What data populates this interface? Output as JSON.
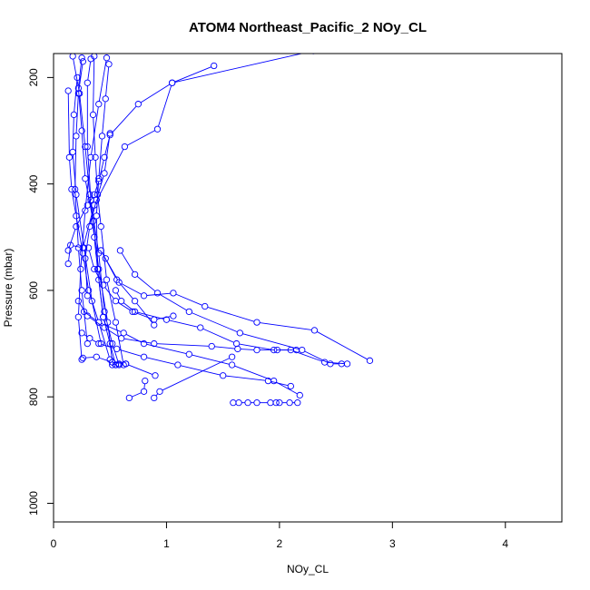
{
  "chart_data": {
    "type": "line",
    "title": "ATOM4 Northeast_Pacific_2 NOy_CL",
    "xlabel": "NOy_CL",
    "ylabel": "Pressure (mbar)",
    "xlim": [
      0,
      4.5
    ],
    "ylim": [
      1035,
      155
    ],
    "x_ticks": [
      "0",
      "1",
      "2",
      "3",
      "4"
    ],
    "x_tick_values": [
      0,
      1,
      2,
      3,
      4
    ],
    "y_ticks": [
      "200",
      "400",
      "600",
      "800",
      "1000"
    ],
    "y_tick_values": [
      200,
      400,
      600,
      800,
      1000
    ],
    "grid": false,
    "color": "#0000ff",
    "marker": "open-circle",
    "series": [
      {
        "x": [
          0.17,
          0.23,
          0.28,
          0.32,
          0.36,
          0.4,
          0.44,
          0.5,
          0.55
        ],
        "y": [
          160,
          230,
          330,
          420,
          500,
          580,
          650,
          700,
          740
        ]
      },
      {
        "x": [
          0.26,
          0.22,
          0.2,
          0.19,
          0.22,
          0.25,
          0.3
        ],
        "y": [
          170,
          230,
          310,
          410,
          520,
          600,
          700
        ]
      },
      {
        "x": [
          0.33,
          0.3,
          0.3,
          0.33,
          0.4,
          0.45,
          0.52,
          0.58
        ],
        "y": [
          165,
          210,
          330,
          430,
          530,
          640,
          700,
          740
        ]
      },
      {
        "x": [
          0.36,
          0.35,
          0.37,
          0.39,
          0.42,
          0.47,
          0.55,
          0.62
        ],
        "y": [
          160,
          270,
          350,
          420,
          480,
          580,
          660,
          740
        ]
      },
      {
        "x": [
          0.25,
          0.22,
          0.25,
          0.28,
          0.35,
          0.4,
          0.48,
          0.52
        ],
        "y": [
          163,
          220,
          300,
          390,
          470,
          560,
          660,
          735
        ]
      },
      {
        "x": [
          0.13,
          0.14,
          0.16,
          0.2,
          0.26,
          0.31,
          0.4,
          0.5,
          0.55
        ],
        "y": [
          225,
          350,
          410,
          460,
          530,
          600,
          660,
          730,
          740
        ]
      },
      {
        "x": [
          0.47,
          0.4,
          0.33,
          0.28,
          0.24,
          0.22,
          0.25
        ],
        "y": [
          163,
          250,
          350,
          450,
          560,
          650,
          730
        ]
      },
      {
        "x": [
          0.49,
          0.46,
          0.43,
          0.4,
          0.38,
          0.39,
          0.44
        ],
        "y": [
          175,
          240,
          310,
          390,
          460,
          560,
          650
        ]
      },
      {
        "x": [
          0.21,
          0.18,
          0.17,
          0.2,
          0.27,
          0.34,
          0.42
        ],
        "y": [
          200,
          270,
          340,
          420,
          520,
          620,
          700
        ]
      },
      {
        "x": [
          1.42,
          1.05,
          0.92,
          0.63,
          0.36,
          0.26,
          0.15,
          0.13
        ],
        "y": [
          178,
          210,
          297,
          330,
          440,
          520,
          515,
          550
        ]
      },
      {
        "x": [
          2.3,
          1.05,
          0.75,
          0.5,
          0.45,
          0.4,
          0.36,
          0.3,
          0.2,
          0.13
        ],
        "y": [
          150,
          210,
          250,
          308,
          350,
          395,
          420,
          440,
          480,
          525
        ]
      },
      {
        "x": [
          0.5,
          0.45,
          0.38,
          0.32,
          0.28,
          0.3
        ],
        "y": [
          305,
          380,
          430,
          480,
          540,
          610
        ]
      },
      {
        "x": [
          0.31,
          0.36,
          0.44,
          0.55,
          0.7,
          0.89,
          1.06
        ],
        "y": [
          520,
          560,
          590,
          620,
          640,
          655,
          648
        ]
      },
      {
        "x": [
          0.42,
          0.56,
          0.72,
          0.89
        ],
        "y": [
          525,
          580,
          620,
          665
        ]
      },
      {
        "x": [
          0.59,
          0.72,
          0.92,
          1.2,
          1.65,
          2.2,
          2.45,
          2.55
        ],
        "y": [
          525,
          570,
          605,
          640,
          680,
          712,
          738,
          738
        ]
      },
      {
        "x": [
          0.46,
          0.58,
          0.8,
          1.06,
          1.34,
          1.8,
          2.31,
          2.8
        ],
        "y": [
          540,
          585,
          610,
          605,
          630,
          660,
          675,
          732
        ]
      },
      {
        "x": [
          0.55,
          0.6,
          0.72,
          1.0,
          1.3,
          1.62,
          1.95,
          2.1,
          2.4,
          2.6
        ],
        "y": [
          600,
          620,
          640,
          655,
          670,
          700,
          712,
          712,
          735,
          738
        ]
      },
      {
        "x": [
          0.27,
          0.4,
          0.62,
          0.8,
          1.2,
          1.58,
          1.95,
          2.18
        ],
        "y": [
          640,
          660,
          680,
          700,
          720,
          740,
          770,
          797
        ]
      },
      {
        "x": [
          0.22,
          0.3,
          0.45,
          0.6,
          0.89,
          1.4,
          1.63,
          1.8,
          1.98,
          2.15
        ],
        "y": [
          620,
          648,
          670,
          690,
          700,
          705,
          710,
          712,
          712,
          712
        ]
      },
      {
        "x": [
          0.25,
          0.32,
          0.4,
          0.56,
          0.8,
          1.1,
          1.5,
          1.9,
          2.1
        ],
        "y": [
          680,
          690,
          700,
          710,
          725,
          740,
          760,
          770,
          780
        ]
      },
      {
        "x": [
          0.26,
          0.38,
          0.52,
          0.64,
          0.9
        ],
        "y": [
          727,
          725,
          735,
          738,
          760
        ]
      },
      {
        "x": [
          0.52,
          0.58,
          0.64
        ],
        "y": [
          740,
          738,
          738
        ]
      },
      {
        "x": [
          1.58,
          0.94,
          0.89
        ],
        "y": [
          725,
          790,
          802
        ]
      },
      {
        "x": [
          0.67,
          0.8,
          0.81
        ],
        "y": [
          802,
          790,
          770
        ]
      },
      {
        "x": [
          1.59,
          1.64,
          1.72,
          1.8,
          1.92,
          1.97,
          2.0,
          2.09,
          2.16
        ],
        "y": [
          811,
          811,
          811,
          811,
          811,
          811,
          811,
          811,
          811
        ]
      }
    ]
  }
}
